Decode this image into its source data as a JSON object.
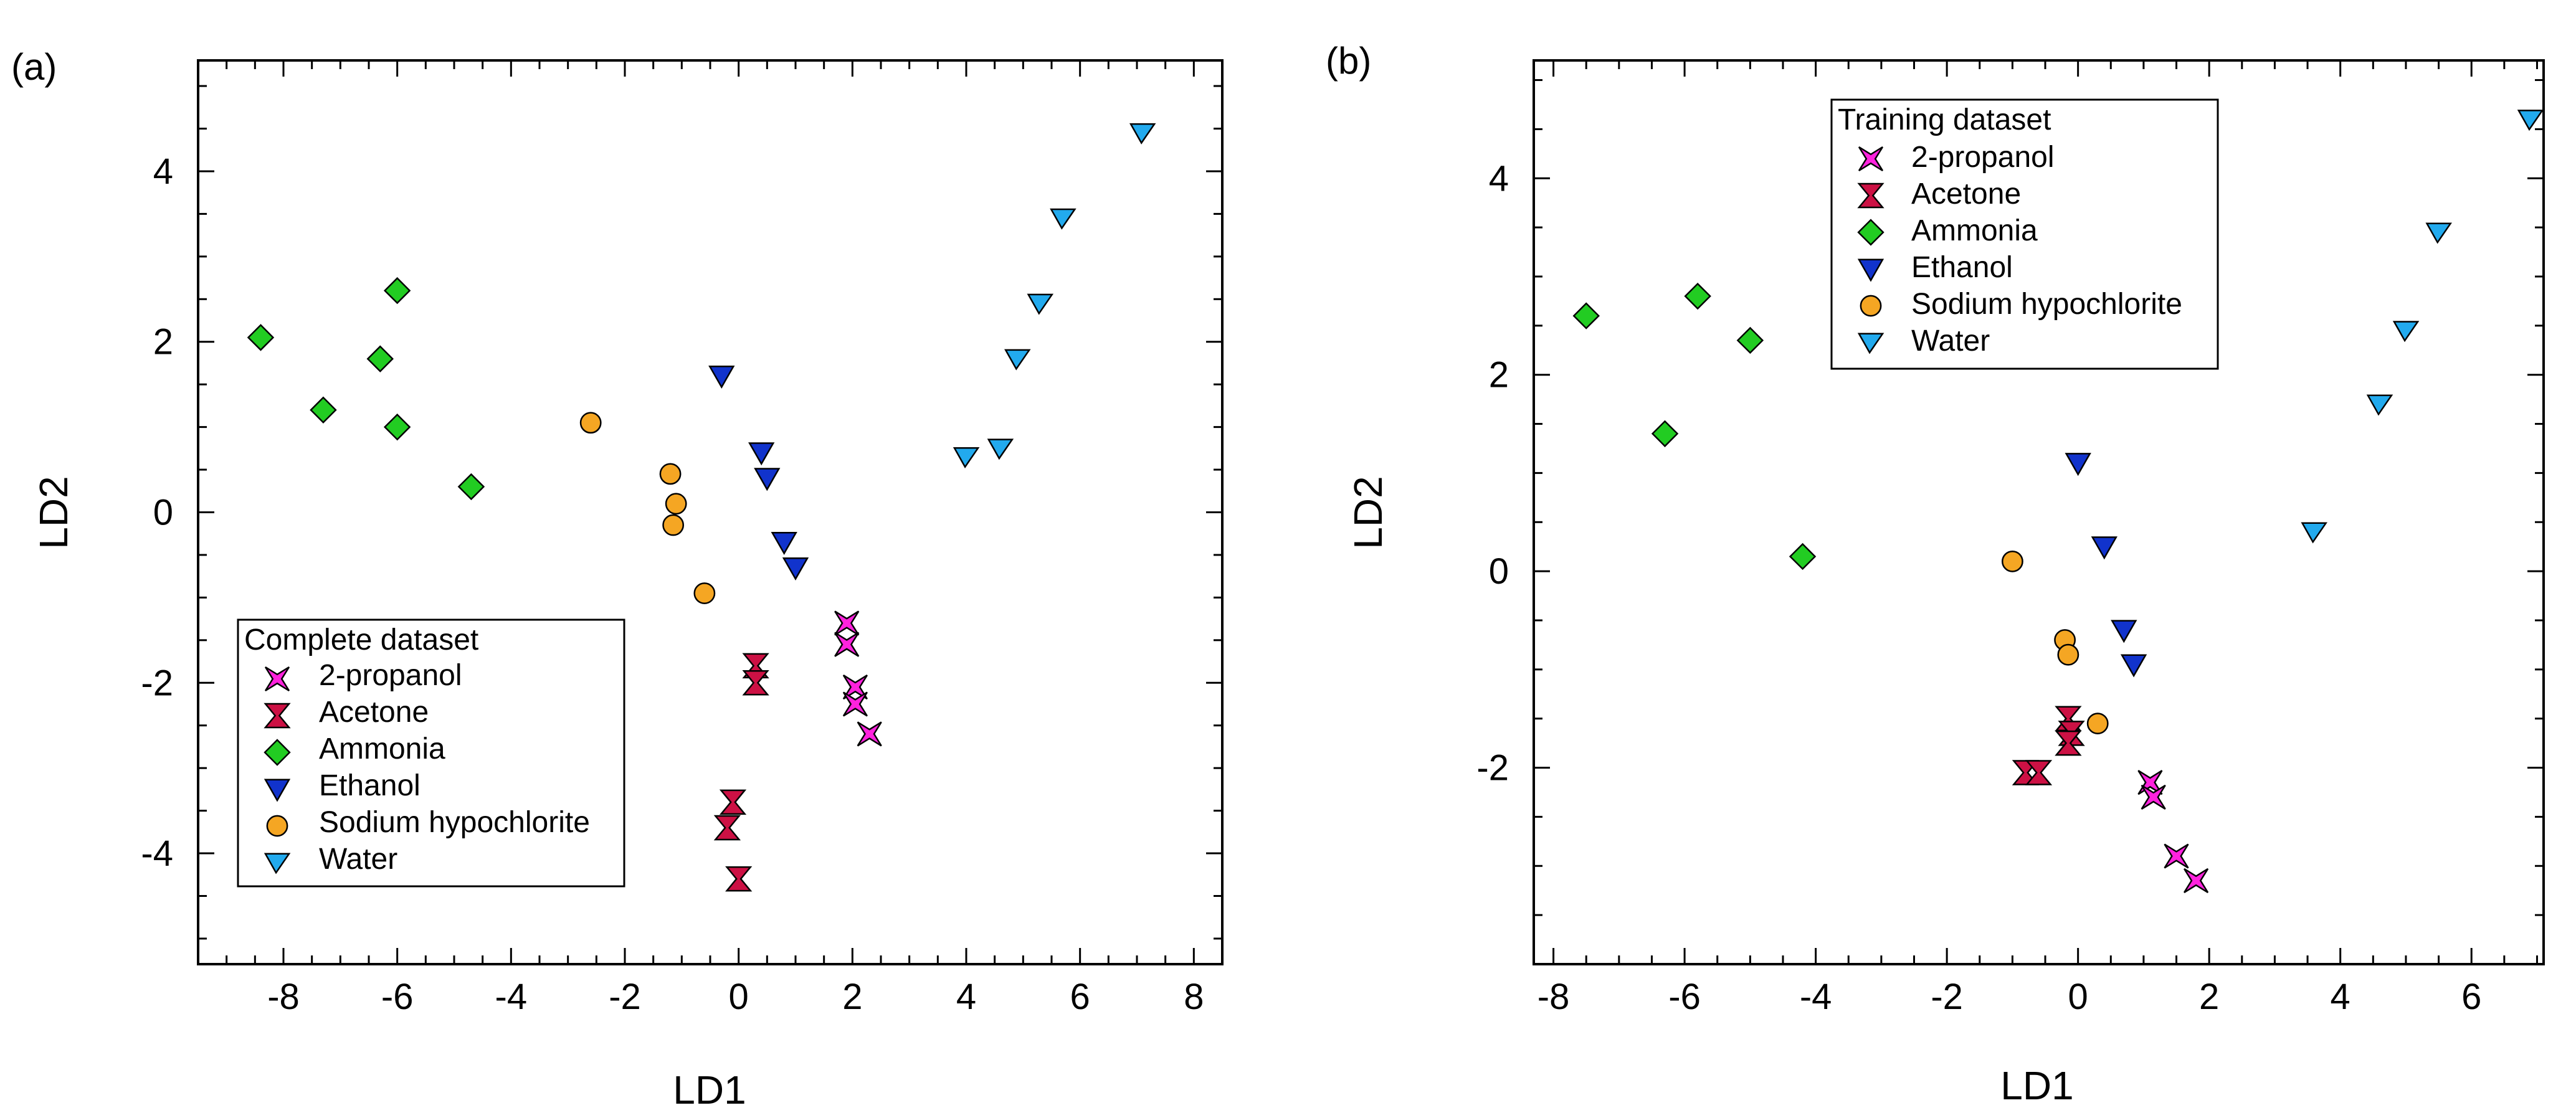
{
  "chart_data": [
    {
      "type": "scatter",
      "panel_label": "(a)",
      "xlabel": "LD1",
      "ylabel": "LD2",
      "xlim": [
        -9.5,
        8.5
      ],
      "ylim": [
        -5.3,
        5.3
      ],
      "xticks": [
        -8,
        -6,
        -4,
        -2,
        0,
        2,
        4,
        6,
        8
      ],
      "yticks": [
        -4,
        -2,
        0,
        2,
        4
      ],
      "xtick_labels": [
        "-8",
        "-6",
        "-4",
        "-2",
        "0",
        "2",
        "4",
        "6",
        "8"
      ],
      "ytick_labels": [
        "-4",
        "-2",
        "0",
        "2",
        "4"
      ],
      "legend": {
        "title": "Complete dataset",
        "placement": "lower-left"
      },
      "series": [
        {
          "name": "2-propanol",
          "marker": "star4",
          "color": "#ff22dd",
          "x": [
            1.9,
            1.9,
            2.05,
            2.05,
            2.3
          ],
          "y": [
            -1.3,
            -1.55,
            -2.05,
            -2.25,
            -2.6
          ]
        },
        {
          "name": "Acetone",
          "marker": "hourglass",
          "color": "#cc1144",
          "x": [
            0.3,
            0.3,
            -0.1,
            -0.2,
            0.0
          ],
          "y": [
            -1.8,
            -2.0,
            -3.4,
            -3.7,
            -4.3
          ]
        },
        {
          "name": "Ammonia",
          "marker": "diamond",
          "color": "#22cc22",
          "x": [
            -8.4,
            -7.3,
            -6.0,
            -6.3,
            -6.0,
            -4.7
          ],
          "y": [
            2.05,
            1.2,
            2.6,
            1.8,
            1.0,
            0.3
          ]
        },
        {
          "name": "Ethanol",
          "marker": "triangle-down",
          "color": "#1133cc",
          "x": [
            -0.3,
            0.4,
            0.5,
            0.8,
            1.0
          ],
          "y": [
            1.6,
            0.7,
            0.4,
            -0.35,
            -0.65
          ]
        },
        {
          "name": "Sodium hypochlorite",
          "marker": "circle",
          "color": "#f5a623",
          "x": [
            -2.6,
            -1.2,
            -1.1,
            -1.15,
            -0.6
          ],
          "y": [
            1.05,
            0.45,
            0.1,
            -0.15,
            -0.95
          ]
        },
        {
          "name": "Water",
          "marker": "flag",
          "color": "#22aaee",
          "x": [
            4.0,
            4.6,
            4.9,
            5.3,
            5.7,
            7.1
          ],
          "y": [
            0.65,
            0.75,
            1.8,
            2.45,
            3.45,
            4.45
          ]
        }
      ]
    },
    {
      "type": "scatter",
      "panel_label": "(b)",
      "xlabel": "LD1",
      "ylabel": "LD2",
      "xlim": [
        -8.3,
        7.1
      ],
      "ylim": [
        -4.0,
        5.2
      ],
      "xticks": [
        -8,
        -6,
        -4,
        -2,
        0,
        2,
        4,
        6
      ],
      "yticks": [
        -2,
        0,
        2,
        4
      ],
      "xtick_labels": [
        "-8",
        "-6",
        "-4",
        "-2",
        "0",
        "2",
        "4",
        "6"
      ],
      "ytick_labels": [
        "-2",
        "0",
        "2",
        "4"
      ],
      "legend": {
        "title": "Training dataset",
        "placement": "top-center"
      },
      "series": [
        {
          "name": "2-propanol",
          "marker": "star4",
          "color": "#ff22dd",
          "x": [
            1.1,
            1.15,
            1.5,
            1.8
          ],
          "y": [
            -2.15,
            -2.3,
            -2.9,
            -3.15
          ]
        },
        {
          "name": "Acetone",
          "marker": "hourglass",
          "color": "#cc1144",
          "x": [
            -0.8,
            -0.6,
            -0.15,
            -0.1,
            -0.15
          ],
          "y": [
            -2.05,
            -2.05,
            -1.5,
            -1.65,
            -1.75
          ]
        },
        {
          "name": "Ammonia",
          "marker": "diamond",
          "color": "#22cc22",
          "x": [
            -7.5,
            -5.8,
            -5.0,
            -6.3,
            -4.2
          ],
          "y": [
            2.6,
            2.8,
            2.35,
            1.4,
            0.15
          ]
        },
        {
          "name": "Ethanol",
          "marker": "triangle-down",
          "color": "#1133cc",
          "x": [
            0.0,
            0.4,
            0.7,
            0.85
          ],
          "y": [
            1.1,
            0.25,
            -0.6,
            -0.95
          ]
        },
        {
          "name": "Sodium hypochlorite",
          "marker": "circle",
          "color": "#f5a623",
          "x": [
            -1.0,
            -0.2,
            -0.15,
            0.3
          ],
          "y": [
            0.1,
            -0.7,
            -0.85,
            -1.55
          ]
        },
        {
          "name": "Water",
          "marker": "flag",
          "color": "#22aaee",
          "x": [
            3.6,
            4.6,
            5.0,
            5.5,
            6.9
          ],
          "y": [
            0.4,
            1.7,
            2.45,
            3.45,
            4.6
          ]
        }
      ]
    }
  ]
}
